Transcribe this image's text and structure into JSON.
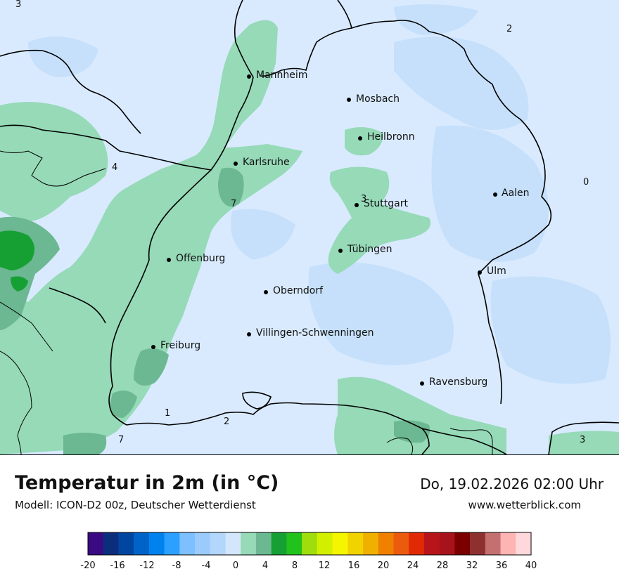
{
  "header": {
    "title": "Temperatur in 2m (in °C)",
    "model": "Modell: ICON-D2 00z, Deutscher Wetterdienst",
    "datetime": "Do, 19.02.2026 02:00 Uhr",
    "website": "www.wetterblick.com"
  },
  "map": {
    "cities": [
      {
        "name": "Mannheim"
      },
      {
        "name": "Mosbach"
      },
      {
        "name": "Heilbronn"
      },
      {
        "name": "Karlsruhe"
      },
      {
        "name": "Stuttgart"
      },
      {
        "name": "Aalen"
      },
      {
        "name": "Offenburg"
      },
      {
        "name": "Tübingen"
      },
      {
        "name": "Ulm"
      },
      {
        "name": "Oberndorf"
      },
      {
        "name": "Villingen-Schwenningen"
      },
      {
        "name": "Freiburg"
      },
      {
        "name": "Ravensburg"
      }
    ],
    "value_labels": [
      "3",
      "2",
      "4",
      "0",
      "7",
      "3",
      "1",
      "2",
      "7",
      "3"
    ],
    "colors": {
      "background": "#d9eaff",
      "cold_patch": "#c6e0fb",
      "green_light": "#96dab8",
      "green_mid": "#6cb892",
      "green_dark": "#16a034",
      "border": "#000000"
    }
  },
  "legend": {
    "ticks": [
      "-20",
      "-16",
      "-12",
      "-8",
      "-4",
      "0",
      "4",
      "8",
      "12",
      "16",
      "20",
      "24",
      "28",
      "32",
      "36",
      "40"
    ],
    "colors": [
      "#3a0a82",
      "#0b2e7c",
      "#0046a0",
      "#0063c8",
      "#0082ee",
      "#2ba0ff",
      "#7dbfff",
      "#9acbfb",
      "#b3d6fb",
      "#d3e6fc",
      "#96dab8",
      "#6cb892",
      "#16a034",
      "#21c21c",
      "#9fde0c",
      "#d3ef00",
      "#f5f500",
      "#f1d300",
      "#f0b000",
      "#ef8000",
      "#ec5a0e",
      "#e02a05",
      "#b8141c",
      "#a8121a",
      "#7a0000",
      "#8e3030",
      "#c57070",
      "#ffb4b4",
      "#ffd8dc"
    ]
  }
}
